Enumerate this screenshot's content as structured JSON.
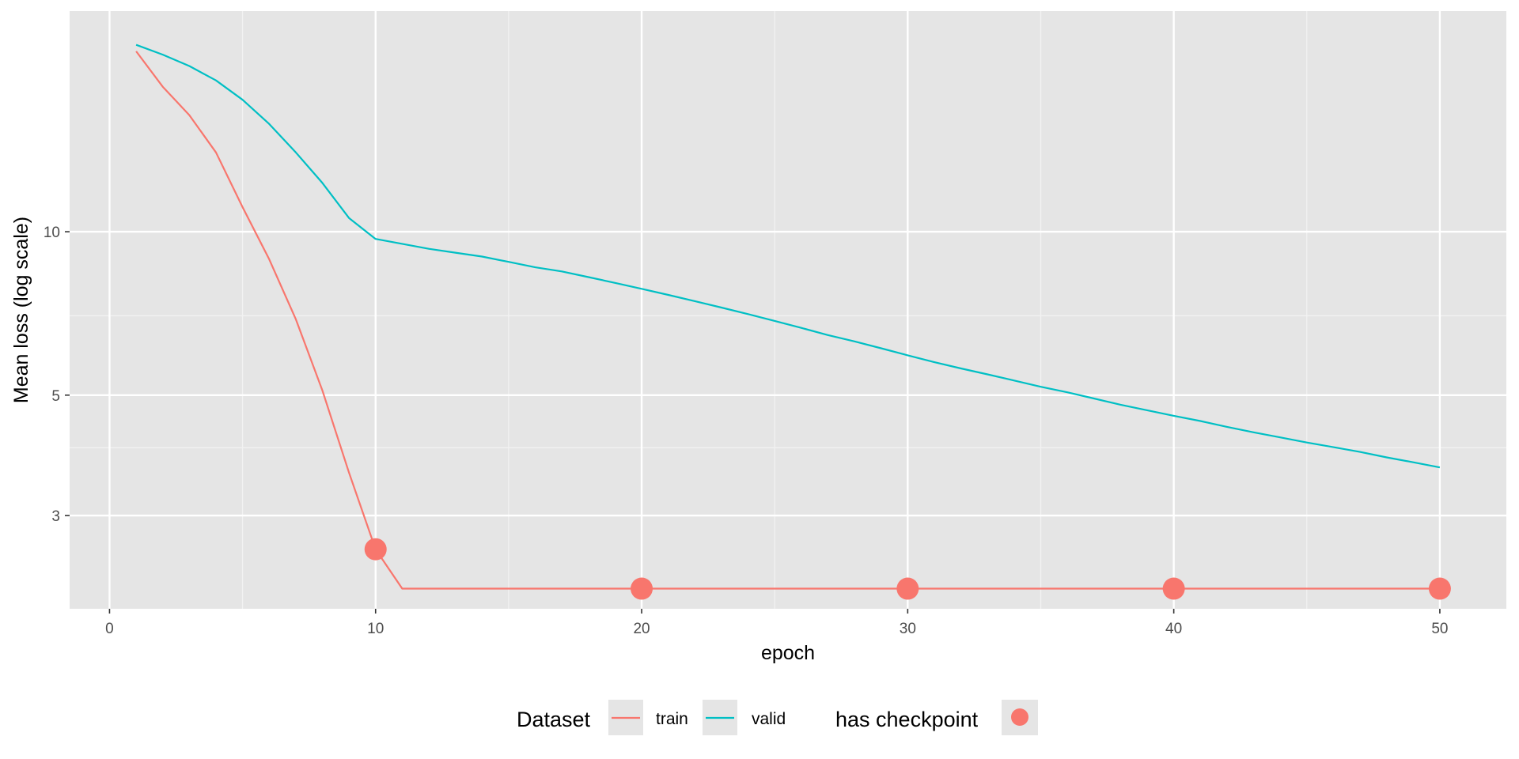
{
  "chart_data": {
    "type": "line",
    "xlabel": "epoch",
    "ylabel": "Mean loss (log scale)",
    "y_scale": "log",
    "xlim": [
      -1.5,
      52.5
    ],
    "ylim": [
      2.02,
      25.5
    ],
    "x_ticks": [
      0,
      10,
      20,
      30,
      40,
      50
    ],
    "x_minor_ticks": [
      5,
      15,
      25,
      35,
      45
    ],
    "y_ticks": [
      3,
      5,
      10
    ],
    "y_minor_ticks": [
      4,
      7
    ],
    "grid": true,
    "background": "#e5e5e5",
    "legend": {
      "position": "bottom",
      "dataset_title": "Dataset",
      "checkpoint_title": "has checkpoint"
    },
    "series": [
      {
        "name": "train",
        "color": "#f8766d",
        "x": [
          1,
          2,
          3,
          4,
          5,
          6,
          7,
          8,
          9,
          10,
          11,
          12,
          13,
          14,
          15,
          16,
          17,
          18,
          19,
          20,
          21,
          22,
          23,
          24,
          25,
          26,
          27,
          28,
          29,
          30,
          31,
          32,
          33,
          34,
          35,
          36,
          37,
          38,
          39,
          40,
          41,
          42,
          43,
          44,
          45,
          46,
          47,
          48,
          49,
          50
        ],
        "y": [
          21.5,
          18.5,
          16.4,
          14.0,
          11.1,
          8.9,
          6.9,
          5.1,
          3.6,
          2.6,
          2.2,
          2.2,
          2.2,
          2.2,
          2.2,
          2.2,
          2.2,
          2.2,
          2.2,
          2.2,
          2.2,
          2.2,
          2.2,
          2.2,
          2.2,
          2.2,
          2.2,
          2.2,
          2.2,
          2.2,
          2.2,
          2.2,
          2.2,
          2.2,
          2.2,
          2.2,
          2.2,
          2.2,
          2.2,
          2.2,
          2.2,
          2.2,
          2.2,
          2.2,
          2.2,
          2.2,
          2.2,
          2.2,
          2.2,
          2.2
        ]
      },
      {
        "name": "valid",
        "color": "#00bfc4",
        "x": [
          1,
          2,
          3,
          4,
          5,
          6,
          7,
          8,
          9,
          10,
          11,
          12,
          13,
          14,
          15,
          16,
          17,
          18,
          19,
          20,
          21,
          22,
          23,
          24,
          25,
          26,
          27,
          28,
          29,
          30,
          31,
          32,
          33,
          34,
          35,
          36,
          37,
          38,
          39,
          40,
          41,
          42,
          43,
          44,
          45,
          46,
          47,
          48,
          49,
          50
        ],
        "y": [
          22.1,
          21.2,
          20.2,
          19.0,
          17.5,
          15.8,
          14.0,
          12.3,
          10.6,
          9.7,
          9.5,
          9.3,
          9.15,
          9.0,
          8.8,
          8.6,
          8.45,
          8.25,
          8.05,
          7.85,
          7.65,
          7.45,
          7.25,
          7.05,
          6.85,
          6.65,
          6.45,
          6.28,
          6.1,
          5.92,
          5.75,
          5.6,
          5.46,
          5.32,
          5.18,
          5.06,
          4.93,
          4.8,
          4.69,
          4.58,
          4.48,
          4.37,
          4.27,
          4.18,
          4.09,
          4.01,
          3.93,
          3.84,
          3.76,
          3.68
        ]
      }
    ],
    "checkpoints": {
      "name": "has checkpoint",
      "color": "#f8766d",
      "x": [
        10,
        20,
        30,
        40,
        50
      ],
      "y": [
        2.6,
        2.2,
        2.2,
        2.2,
        2.2
      ]
    }
  }
}
